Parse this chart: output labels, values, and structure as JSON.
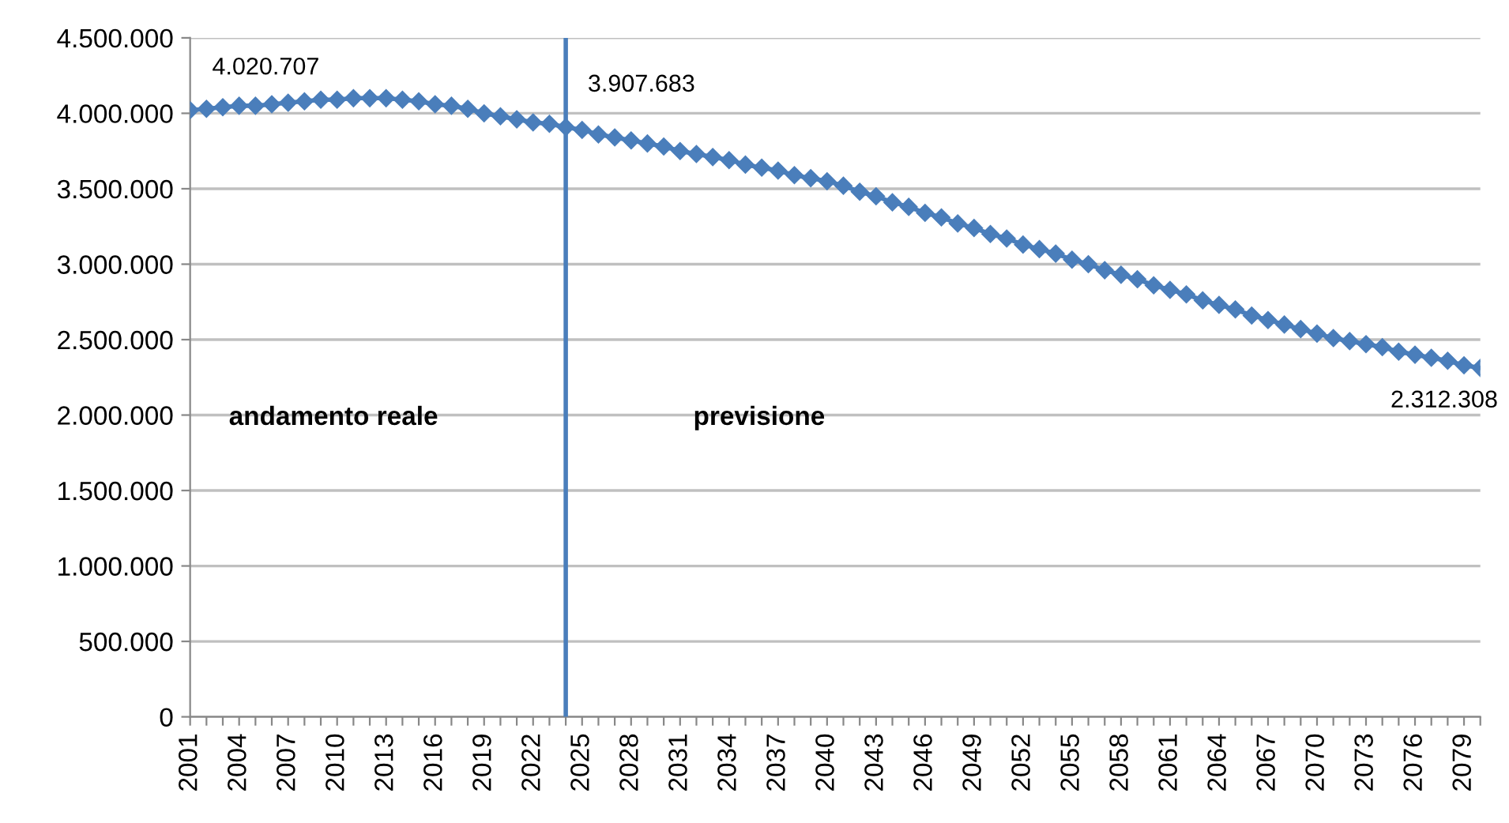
{
  "chart_data": {
    "type": "line",
    "x": [
      2001,
      2002,
      2003,
      2004,
      2005,
      2006,
      2007,
      2008,
      2009,
      2010,
      2011,
      2012,
      2013,
      2014,
      2015,
      2016,
      2017,
      2018,
      2019,
      2020,
      2021,
      2022,
      2023,
      2024,
      2025,
      2026,
      2027,
      2028,
      2029,
      2030,
      2031,
      2032,
      2033,
      2034,
      2035,
      2036,
      2037,
      2038,
      2039,
      2040,
      2041,
      2042,
      2043,
      2044,
      2045,
      2046,
      2047,
      2048,
      2049,
      2050,
      2051,
      2052,
      2053,
      2054,
      2055,
      2056,
      2057,
      2058,
      2059,
      2060,
      2061,
      2062,
      2063,
      2064,
      2065,
      2066,
      2067,
      2068,
      2069,
      2070,
      2071,
      2072,
      2073,
      2074,
      2075,
      2076,
      2077,
      2078,
      2079,
      2080
    ],
    "series": [
      {
        "color": "#4a7ebb",
        "values": [
          4020707,
          4030000,
          4040000,
          4050000,
          4050000,
          4060000,
          4070000,
          4080000,
          4090000,
          4090000,
          4100000,
          4100000,
          4100000,
          4090000,
          4080000,
          4060000,
          4050000,
          4030000,
          4000000,
          3980000,
          3960000,
          3940000,
          3930000,
          3907683,
          3890000,
          3860000,
          3840000,
          3820000,
          3800000,
          3780000,
          3750000,
          3730000,
          3710000,
          3690000,
          3660000,
          3640000,
          3620000,
          3590000,
          3570000,
          3550000,
          3520000,
          3480000,
          3450000,
          3410000,
          3380000,
          3340000,
          3310000,
          3270000,
          3240000,
          3200000,
          3170000,
          3130000,
          3100000,
          3070000,
          3030000,
          3000000,
          2960000,
          2930000,
          2900000,
          2860000,
          2830000,
          2800000,
          2760000,
          2730000,
          2700000,
          2660000,
          2630000,
          2600000,
          2570000,
          2540000,
          2510000,
          2490000,
          2470000,
          2450000,
          2420000,
          2400000,
          2380000,
          2360000,
          2330000,
          2312308
        ],
        "value_labels": [
          "4.020.707",
          null,
          null,
          null,
          null,
          null,
          null,
          null,
          null,
          null,
          null,
          null,
          null,
          null,
          null,
          null,
          null,
          null,
          null,
          null,
          null,
          null,
          null,
          "3.907.683",
          null,
          null,
          null,
          null,
          null,
          null,
          null,
          null,
          null,
          null,
          null,
          null,
          null,
          null,
          null,
          null,
          null,
          null,
          null,
          null,
          null,
          null,
          null,
          null,
          null,
          null,
          null,
          null,
          null,
          null,
          null,
          null,
          null,
          null,
          null,
          null,
          null,
          null,
          null,
          null,
          null,
          null,
          null,
          null,
          null,
          null,
          null,
          null,
          null,
          null,
          null,
          null,
          null,
          null,
          null,
          "2.312.308"
        ]
      }
    ],
    "marker": "diamond",
    "line_style": "solid",
    "xlim": [
      2001,
      2080
    ],
    "xticks": [
      2001,
      {
        "value": 2002,
        "label": null
      },
      {
        "value": 2003,
        "label": null
      },
      2004,
      {
        "value": 2005,
        "label": null
      },
      {
        "value": 2006,
        "label": null
      },
      2007,
      {
        "value": 2008,
        "label": null
      },
      {
        "value": 2009,
        "label": null
      },
      2010,
      {
        "value": 2011,
        "label": null
      },
      {
        "value": 2012,
        "label": null
      },
      2013,
      {
        "value": 2014,
        "label": null
      },
      {
        "value": 2015,
        "label": null
      },
      2016,
      {
        "value": 2017,
        "label": null
      },
      {
        "value": 2018,
        "label": null
      },
      2019,
      {
        "value": 2020,
        "label": null
      },
      {
        "value": 2021,
        "label": null
      },
      2022,
      {
        "value": 2023,
        "label": null
      },
      {
        "value": 2024,
        "label": null
      },
      2025,
      {
        "value": 2026,
        "label": null
      },
      {
        "value": 2027,
        "label": null
      },
      2028,
      {
        "value": 2029,
        "label": null
      },
      {
        "value": 2030,
        "label": null
      },
      2031,
      {
        "value": 2032,
        "label": null
      },
      {
        "value": 2033,
        "label": null
      },
      2034,
      {
        "value": 2035,
        "label": null
      },
      {
        "value": 2036,
        "label": null
      },
      2037,
      {
        "value": 2038,
        "label": null
      },
      {
        "value": 2039,
        "label": null
      },
      2040,
      {
        "value": 2041,
        "label": null
      },
      {
        "value": 2042,
        "label": null
      },
      2043,
      {
        "value": 2044,
        "label": null
      },
      {
        "value": 2045,
        "label": null
      },
      2046,
      {
        "value": 2047,
        "label": null
      },
      {
        "value": 2048,
        "label": null
      },
      2049,
      {
        "value": 2050,
        "label": null
      },
      {
        "value": 2051,
        "label": null
      },
      2052,
      {
        "value": 2053,
        "label": null
      },
      {
        "value": 2054,
        "label": null
      },
      2055,
      {
        "value": 2056,
        "label": null
      },
      {
        "value": 2057,
        "label": null
      },
      2058,
      {
        "value": 2059,
        "label": null
      },
      {
        "value": 2060,
        "label": null
      },
      2061,
      {
        "value": 2062,
        "label": null
      },
      {
        "value": 2063,
        "label": null
      },
      2064,
      {
        "value": 2065,
        "label": null
      },
      {
        "value": 2066,
        "label": null
      },
      2067,
      {
        "value": 2068,
        "label": null
      },
      {
        "value": 2069,
        "label": null
      },
      2070,
      {
        "value": 2071,
        "label": null
      },
      {
        "value": 2072,
        "label": null
      },
      2073,
      {
        "value": 2074,
        "label": null
      },
      {
        "value": 2075,
        "label": null
      },
      2076,
      {
        "value": 2077,
        "label": null
      },
      {
        "value": 2078,
        "label": null
      },
      2079,
      {
        "value": 2080,
        "label": null
      }
    ],
    "ylim": [
      0,
      4500000
    ],
    "yticks": [
      {
        "value": 0,
        "label": "0"
      },
      {
        "value": 500000,
        "label": "500.000"
      },
      {
        "value": 1000000,
        "label": "1.000.000"
      },
      {
        "value": 1500000,
        "label": "1.500.000"
      },
      {
        "value": 2000000,
        "label": "2.000.000"
      },
      {
        "value": 2500000,
        "label": "2.500.000"
      },
      {
        "value": 3000000,
        "label": "3.000.000"
      },
      {
        "value": 3500000,
        "label": "3.500.000"
      },
      {
        "value": 4000000,
        "label": "4.000.000"
      },
      {
        "value": 4500000,
        "label": "4.500.000"
      }
    ],
    "grid": "y",
    "ref_lines": [
      {
        "axis": "x",
        "value": 2024,
        "color": "#4a7ebb"
      }
    ],
    "annotations": [
      "andamento reale",
      "previsione"
    ]
  }
}
